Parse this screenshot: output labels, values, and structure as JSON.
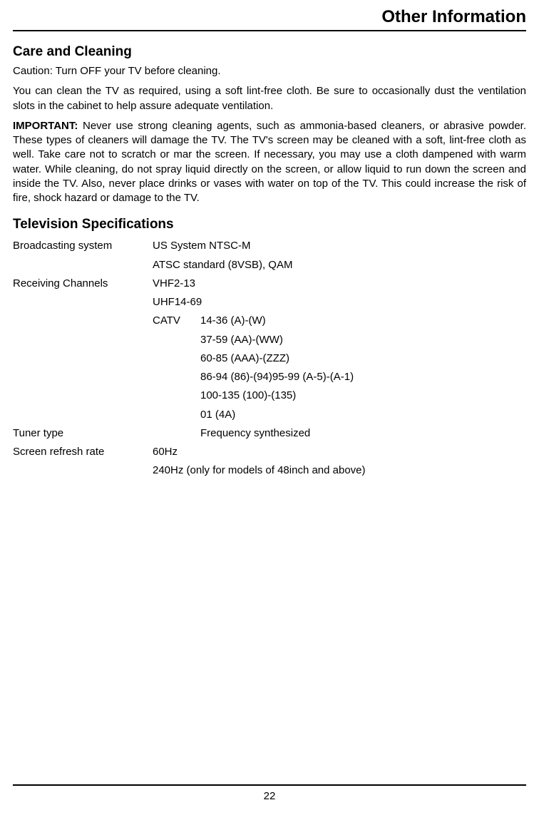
{
  "header": {
    "title": "Other Information"
  },
  "section1": {
    "heading": "Care and Cleaning",
    "p1": "Caution: Turn OFF your TV before cleaning.",
    "p2": "You can clean the TV as required, using a soft lint-free cloth. Be sure to occasionally dust the ventilation slots in the cabinet to help assure adequate ventilation.",
    "p3_bold": "IMPORTANT:",
    "p3_rest": " Never use strong cleaning agents, such as ammonia-based cleaners, or abrasive powder. These types of cleaners will damage the TV. The TV's screen may be cleaned with a soft, lint-free cloth as well. Take care not to scratch or mar the screen. If necessary, you may use a cloth dampened with warm water. While cleaning, do not spray liquid directly on the screen, or allow liquid to run down the screen and inside the TV. Also, never place drinks or vases with water on top of the TV. This could increase the risk of fire, shock hazard or damage to the TV."
  },
  "section2": {
    "heading": "Television Specifications",
    "specs": {
      "broadcasting_label": "Broadcasting system",
      "broadcasting_v1": "US System NTSC-M",
      "broadcasting_v2": "ATSC standard (8VSB), QAM",
      "receiving_label": "Receiving Channels",
      "receiving_v1": "VHF2-13",
      "receiving_v2": "UHF14-69",
      "catv_label": "CATV",
      "catv_v1": "14-36 (A)-(W)",
      "catv_v2": "37-59 (AA)-(WW)",
      "catv_v3": "60-85 (AAA)-(ZZZ)",
      "catv_v4": "86-94 (86)-(94)95-99 (A-5)-(A-1)",
      "catv_v5": "100-135 (100)-(135)",
      "catv_v6": "01 (4A)",
      "tuner_label": "Tuner type",
      "tuner_value": "Frequency synthesized",
      "refresh_label": "Screen refresh rate",
      "refresh_v1": "60Hz",
      "refresh_v2": "240Hz (only for models of 48inch and above)"
    }
  },
  "footer": {
    "page_number": "22"
  }
}
